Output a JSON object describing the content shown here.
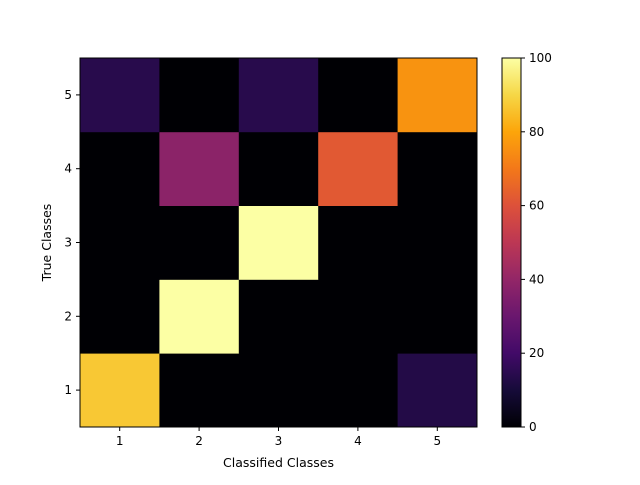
{
  "chart_data": {
    "type": "heatmap",
    "title": "",
    "xlabel": "Classified Classes",
    "ylabel": "True Classes",
    "x_categories": [
      "1",
      "2",
      "3",
      "4",
      "5"
    ],
    "y_categories": [
      "1",
      "2",
      "3",
      "4",
      "5"
    ],
    "values": [
      [
        87,
        0,
        0,
        0,
        13
      ],
      [
        0,
        100,
        0,
        0,
        0
      ],
      [
        0,
        0,
        100,
        0,
        0
      ],
      [
        0,
        38,
        0,
        62,
        0
      ],
      [
        14,
        0,
        14,
        0,
        76
      ]
    ],
    "value_range": [
      0,
      100
    ],
    "colormap": "inferno",
    "colorbar": {
      "ticks": [
        "0",
        "20",
        "40",
        "60",
        "80",
        "100"
      ],
      "placement": "right"
    },
    "grid": false
  }
}
